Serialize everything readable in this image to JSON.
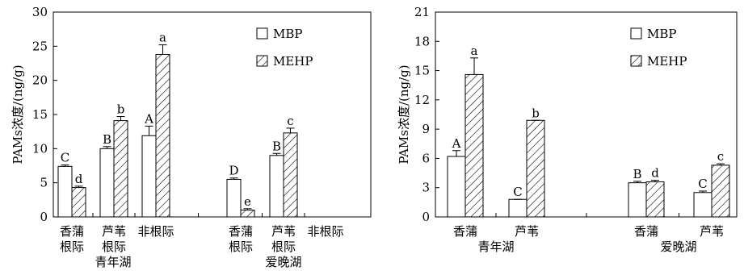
{
  "chart_data": [
    {
      "type": "bar",
      "ylabel": "PAMs浓度/(ng/g)",
      "ylim": [
        0,
        30
      ],
      "yticks": [
        0,
        5,
        10,
        15,
        20,
        25,
        30
      ],
      "legend_position": "top-right",
      "series": [
        {
          "name": "MBP",
          "pattern": "empty"
        },
        {
          "name": "MEHP",
          "pattern": "hatch"
        }
      ],
      "categories": [
        {
          "label": [
            "香蒲",
            "根际"
          ],
          "MBP": 7.4,
          "MBP_err": 0.2,
          "MBP_sig": "C",
          "MEHP": 4.3,
          "MEHP_err": 0.2,
          "MEHP_sig": "d"
        },
        {
          "label": [
            "芦苇",
            "根际"
          ],
          "MBP": 10.0,
          "MBP_err": 0.3,
          "MBP_sig": "B",
          "MEHP": 14.1,
          "MEHP_err": 0.6,
          "MEHP_sig": "b"
        },
        {
          "label": [
            "非根际"
          ],
          "MBP": 11.9,
          "MBP_err": 1.4,
          "MBP_sig": "A",
          "MEHP": 23.8,
          "MEHP_err": 1.4,
          "MEHP_sig": "a"
        },
        {
          "label": [
            "香蒲",
            "根际"
          ],
          "MBP": 5.5,
          "MBP_err": 0.2,
          "MBP_sig": "D",
          "MEHP": 1.0,
          "MEHP_err": 0.2,
          "MEHP_sig": "e"
        },
        {
          "label": [
            "芦苇",
            "根际"
          ],
          "MBP": 9.0,
          "MBP_err": 0.3,
          "MBP_sig": "B",
          "MEHP": 12.3,
          "MEHP_err": 0.7,
          "MEHP_sig": "c"
        },
        {
          "label": [
            "非根际"
          ],
          "MBP": null,
          "MEHP": null
        }
      ],
      "groups": [
        {
          "name": "青年湖",
          "categories": [
            0,
            1,
            2
          ]
        },
        {
          "name": "爱晚湖",
          "categories": [
            3,
            4,
            5
          ]
        }
      ]
    },
    {
      "type": "bar",
      "ylabel": "PAMs浓度/(ng/g)",
      "ylim": [
        0,
        21
      ],
      "yticks": [
        0,
        3,
        6,
        9,
        12,
        15,
        18,
        21
      ],
      "legend_position": "top-right",
      "series": [
        {
          "name": "MBP",
          "pattern": "empty"
        },
        {
          "name": "MEHP",
          "pattern": "hatch"
        }
      ],
      "categories": [
        {
          "label": [
            "香蒲"
          ],
          "MBP": 6.2,
          "MBP_err": 0.6,
          "MBP_sig": "A",
          "MEHP": 14.6,
          "MEHP_err": 1.7,
          "MEHP_sig": "a"
        },
        {
          "label": [
            "芦苇"
          ],
          "MBP": 1.8,
          "MBP_err": 0.0,
          "MBP_sig": "C",
          "MEHP": 9.9,
          "MEHP_err": 0.0,
          "MEHP_sig": "b"
        },
        {
          "label": [
            "香蒲"
          ],
          "MBP": 3.5,
          "MBP_err": 0.15,
          "MBP_sig": "B",
          "MEHP": 3.6,
          "MEHP_err": 0.15,
          "MEHP_sig": "d"
        },
        {
          "label": [
            "芦苇"
          ],
          "MBP": 2.5,
          "MBP_err": 0.15,
          "MBP_sig": "C",
          "MEHP": 5.3,
          "MEHP_err": 0.15,
          "MEHP_sig": "c"
        }
      ],
      "groups": [
        {
          "name": "青年湖",
          "categories": [
            0,
            1
          ]
        },
        {
          "name": "爱晚湖",
          "categories": [
            2,
            3
          ]
        }
      ]
    }
  ]
}
